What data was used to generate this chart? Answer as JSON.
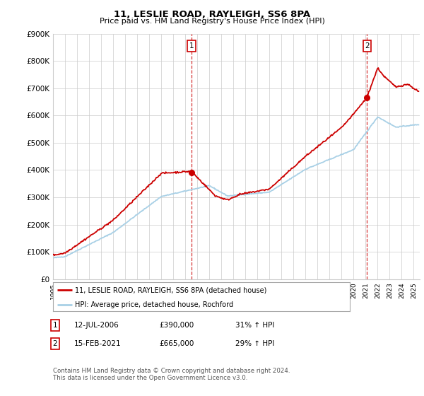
{
  "title": "11, LESLIE ROAD, RAYLEIGH, SS6 8PA",
  "subtitle": "Price paid vs. HM Land Registry's House Price Index (HPI)",
  "ylabel_ticks": [
    "£0",
    "£100K",
    "£200K",
    "£300K",
    "£400K",
    "£500K",
    "£600K",
    "£700K",
    "£800K",
    "£900K"
  ],
  "ylim": [
    0,
    900000
  ],
  "xlim_start": 1995.0,
  "xlim_end": 2025.5,
  "marker1_date": 2006.53,
  "marker1_label": "1",
  "marker1_price": 390000,
  "marker2_date": 2021.12,
  "marker2_label": "2",
  "marker2_price": 665000,
  "legend_line1": "11, LESLIE ROAD, RAYLEIGH, SS6 8PA (detached house)",
  "legend_line2": "HPI: Average price, detached house, Rochford",
  "hpi_color": "#a8d0e6",
  "price_color": "#cc0000",
  "bg_color": "#ffffff",
  "grid_color": "#cccccc",
  "footer": "Contains HM Land Registry data © Crown copyright and database right 2024.\nThis data is licensed under the Open Government Licence v3.0."
}
